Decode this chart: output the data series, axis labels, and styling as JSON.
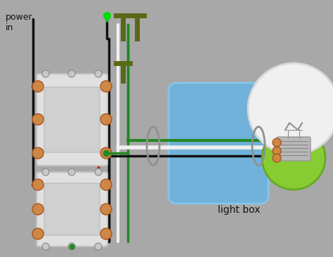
{
  "bg_color": "#a8a8a8",
  "label_power": "power\nin",
  "label_lightbox": "light box",
  "wire_colors": {
    "black": "#111111",
    "white": "#f0f0f0",
    "red": "#dd0000",
    "green": "#228822",
    "green_bright": "#00dd00",
    "dark_olive": "#5a6818"
  },
  "figsize": [
    4.74,
    3.66
  ],
  "dpi": 100
}
